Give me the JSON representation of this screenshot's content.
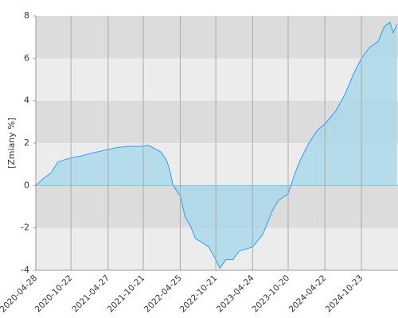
{
  "chart_data": {
    "type": "area",
    "y_label": "[Zmiany %]",
    "x": [
      "2020-04-28",
      "2020-06-01",
      "2020-07-15",
      "2020-08-15",
      "2020-09-15",
      "2020-10-22",
      "2020-12-15",
      "2021-02-15",
      "2021-04-27",
      "2021-06-15",
      "2021-08-15",
      "2021-10-21",
      "2021-11-15",
      "2021-12-15",
      "2022-01-15",
      "2022-02-15",
      "2022-03-01",
      "2022-03-20",
      "2022-04-25",
      "2022-05-20",
      "2022-06-15",
      "2022-07-10",
      "2022-08-15",
      "2022-09-15",
      "2022-10-21",
      "2022-11-10",
      "2022-12-10",
      "2023-01-15",
      "2023-02-15",
      "2023-04-24",
      "2023-06-15",
      "2023-08-01",
      "2023-09-01",
      "2023-10-20",
      "2023-11-20",
      "2023-12-20",
      "2024-02-01",
      "2024-03-15",
      "2024-04-22",
      "2024-06-15",
      "2024-08-01",
      "2024-09-15",
      "2024-10-23",
      "2024-12-01",
      "2025-01-15",
      "2025-02-15",
      "2025-03-15",
      "2025-04-01",
      "2025-04-20"
    ],
    "series": [
      {
        "color": "#3399ff",
        "fill": "#a8d8ea",
        "values": [
          0,
          0.3,
          0.6,
          1.1,
          1.2,
          1.3,
          1.4,
          1.55,
          1.7,
          1.8,
          1.85,
          1.85,
          1.9,
          1.75,
          1.6,
          1.2,
          0.8,
          0,
          -0.5,
          -1.5,
          -1.9,
          -2.5,
          -2.7,
          -2.9,
          -3.5,
          -3.9,
          -3.5,
          -3.5,
          -3.1,
          -2.9,
          -2.3,
          -1.2,
          -0.7,
          -0.4,
          0.5,
          1.2,
          2.0,
          2.6,
          2.9,
          3.5,
          4.3,
          5.3,
          6.0,
          6.5,
          6.8,
          7.5,
          7.7,
          7.2,
          7.6
        ]
      }
    ],
    "xlim": [
      "2020-04-28",
      "2025-04-25"
    ],
    "xticks": [
      "2020-04-28",
      "2020-10-22",
      "2021-04-27",
      "2021-10-21",
      "2022-04-25",
      "2022-10-21",
      "2023-04-24",
      "2023-10-20",
      "2024-04-22",
      "2024-10-23"
    ],
    "ylim": [
      -4,
      8
    ],
    "yticks": [
      -4,
      -2,
      0,
      2,
      4,
      6,
      8
    ],
    "bands": [
      "#ececec",
      "#dcdcdc"
    ],
    "grid": true
  }
}
